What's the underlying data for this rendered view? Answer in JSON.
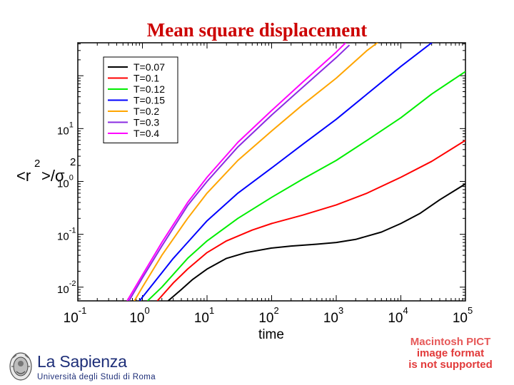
{
  "slide": {
    "title": "Mean square displacement"
  },
  "footer": {
    "logo_name": "La Sapienza",
    "logo_subtitle": "Università degli Studi di Roma",
    "placeholder_lines": [
      "Macintosh PICT",
      "image format",
      "is not supported"
    ]
  },
  "colors": {
    "title": "#cc0000",
    "logo": "#1d2e78",
    "placeholder": "#e23a3a"
  },
  "chart_data": {
    "type": "line",
    "title": "",
    "xlabel": "time",
    "ylabel_base": "<r",
    "ylabel_rest": ">/σ",
    "ylabel_sup": "2",
    "xscale": "log",
    "yscale": "log",
    "xlim": [
      0.1,
      100000
    ],
    "ylim": [
      0.0055,
      420
    ],
    "x_ticks": [
      {
        "value": 0.1,
        "base": "10",
        "exp": "-1"
      },
      {
        "value": 1,
        "base": "10",
        "exp": "0"
      },
      {
        "value": 10,
        "base": "10",
        "exp": "1"
      },
      {
        "value": 100,
        "base": "10",
        "exp": "2"
      },
      {
        "value": 1000,
        "base": "10",
        "exp": "3"
      },
      {
        "value": 10000,
        "base": "10",
        "exp": "4"
      },
      {
        "value": 100000,
        "base": "10",
        "exp": "5"
      }
    ],
    "y_ticks": [
      {
        "value": 0.01,
        "base": "10",
        "exp": "-2"
      },
      {
        "value": 0.1,
        "base": "10",
        "exp": "-1"
      },
      {
        "value": 1,
        "base": "10",
        "exp": "0"
      },
      {
        "value": 10,
        "base": "10",
        "exp": "1"
      }
    ],
    "grid": false,
    "legend_position": "top-left",
    "series": [
      {
        "name": "T=0.07",
        "color": "#000000",
        "x": [
          2.5,
          4,
          6,
          10,
          20,
          40,
          100,
          200,
          500,
          1000,
          2000,
          5000,
          10000,
          20000,
          40000,
          100000
        ],
        "y": [
          0.0055,
          0.009,
          0.014,
          0.022,
          0.035,
          0.045,
          0.055,
          0.06,
          0.065,
          0.07,
          0.08,
          0.11,
          0.16,
          0.25,
          0.45,
          0.9
        ]
      },
      {
        "name": "T=0.1",
        "color": "#ff0000",
        "x": [
          1.7,
          3,
          5,
          10,
          20,
          50,
          100,
          300,
          1000,
          3000,
          10000,
          30000,
          100000
        ],
        "y": [
          0.0055,
          0.012,
          0.022,
          0.045,
          0.075,
          0.12,
          0.16,
          0.23,
          0.36,
          0.6,
          1.2,
          2.4,
          6.0
        ]
      },
      {
        "name": "T=0.12",
        "color": "#00ee00",
        "x": [
          1.2,
          2,
          5,
          10,
          30,
          100,
          300,
          1000,
          3000,
          10000,
          30000,
          100000
        ],
        "y": [
          0.0055,
          0.01,
          0.035,
          0.075,
          0.2,
          0.5,
          1.1,
          2.5,
          6.0,
          16,
          45,
          120
        ]
      },
      {
        "name": "T=0.15",
        "color": "#0000ff",
        "x": [
          0.9,
          1.5,
          3,
          10,
          30,
          100,
          300,
          1000,
          3000,
          10000,
          30000,
          50000
        ],
        "y": [
          0.0055,
          0.012,
          0.035,
          0.18,
          0.6,
          1.8,
          5.0,
          15,
          45,
          150,
          420,
          700
        ]
      },
      {
        "name": "T=0.2",
        "color": "#ffa500",
        "x": [
          0.75,
          1,
          2,
          5,
          10,
          30,
          100,
          300,
          1000,
          3000,
          5000
        ],
        "y": [
          0.0055,
          0.01,
          0.04,
          0.2,
          0.6,
          2.5,
          9,
          28,
          90,
          300,
          480
        ]
      },
      {
        "name": "T=0.3",
        "color": "#8a2be2",
        "x": [
          0.62,
          1,
          2,
          5,
          10,
          30,
          100,
          300,
          1000,
          1600
        ],
        "y": [
          0.0055,
          0.015,
          0.06,
          0.35,
          1.0,
          4.5,
          18,
          60,
          220,
          380
        ]
      },
      {
        "name": "T=0.4",
        "color": "#ff00ff",
        "x": [
          0.58,
          1,
          2,
          5,
          10,
          30,
          100,
          300,
          1000,
          1400
        ],
        "y": [
          0.0055,
          0.017,
          0.07,
          0.4,
          1.2,
          5.5,
          22,
          75,
          280,
          420
        ]
      }
    ]
  }
}
